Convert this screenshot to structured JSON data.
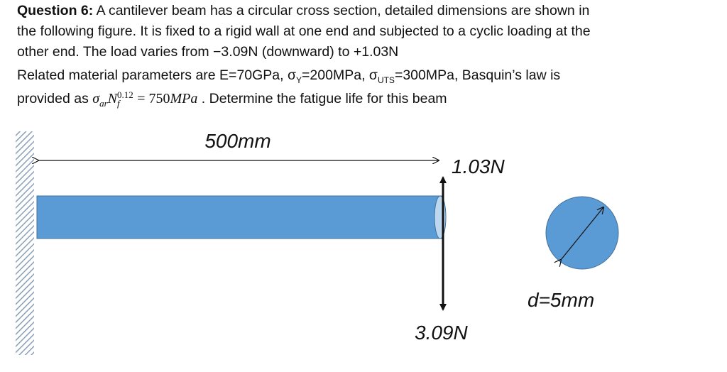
{
  "question": {
    "label": "Question 6:",
    "line1": " A cantilever beam has a circular cross section, detailed dimensions are shown in",
    "line2": "the following figure. It is fixed to a rigid wall at one end and subjected to a cyclic loading at the",
    "line3": "other end. The load varies from −3.09N (downward) to +1.03N",
    "line4": [
      "Related material parameters are E=70GPa, σ",
      "Y",
      "=200MPa, σ",
      "UTS",
      "=300MPa, Basquin’s law is"
    ],
    "line5": [
      "provided as ",
      "σ",
      "ar",
      "N",
      "0.12",
      "f",
      "= 750",
      "MPa",
      " . Determine the fatigue life for this beam"
    ]
  },
  "figure": {
    "length": "500mm",
    "upward_load": "1.03N",
    "downward_load": "3.09N",
    "diameter": "d=5mm"
  }
}
